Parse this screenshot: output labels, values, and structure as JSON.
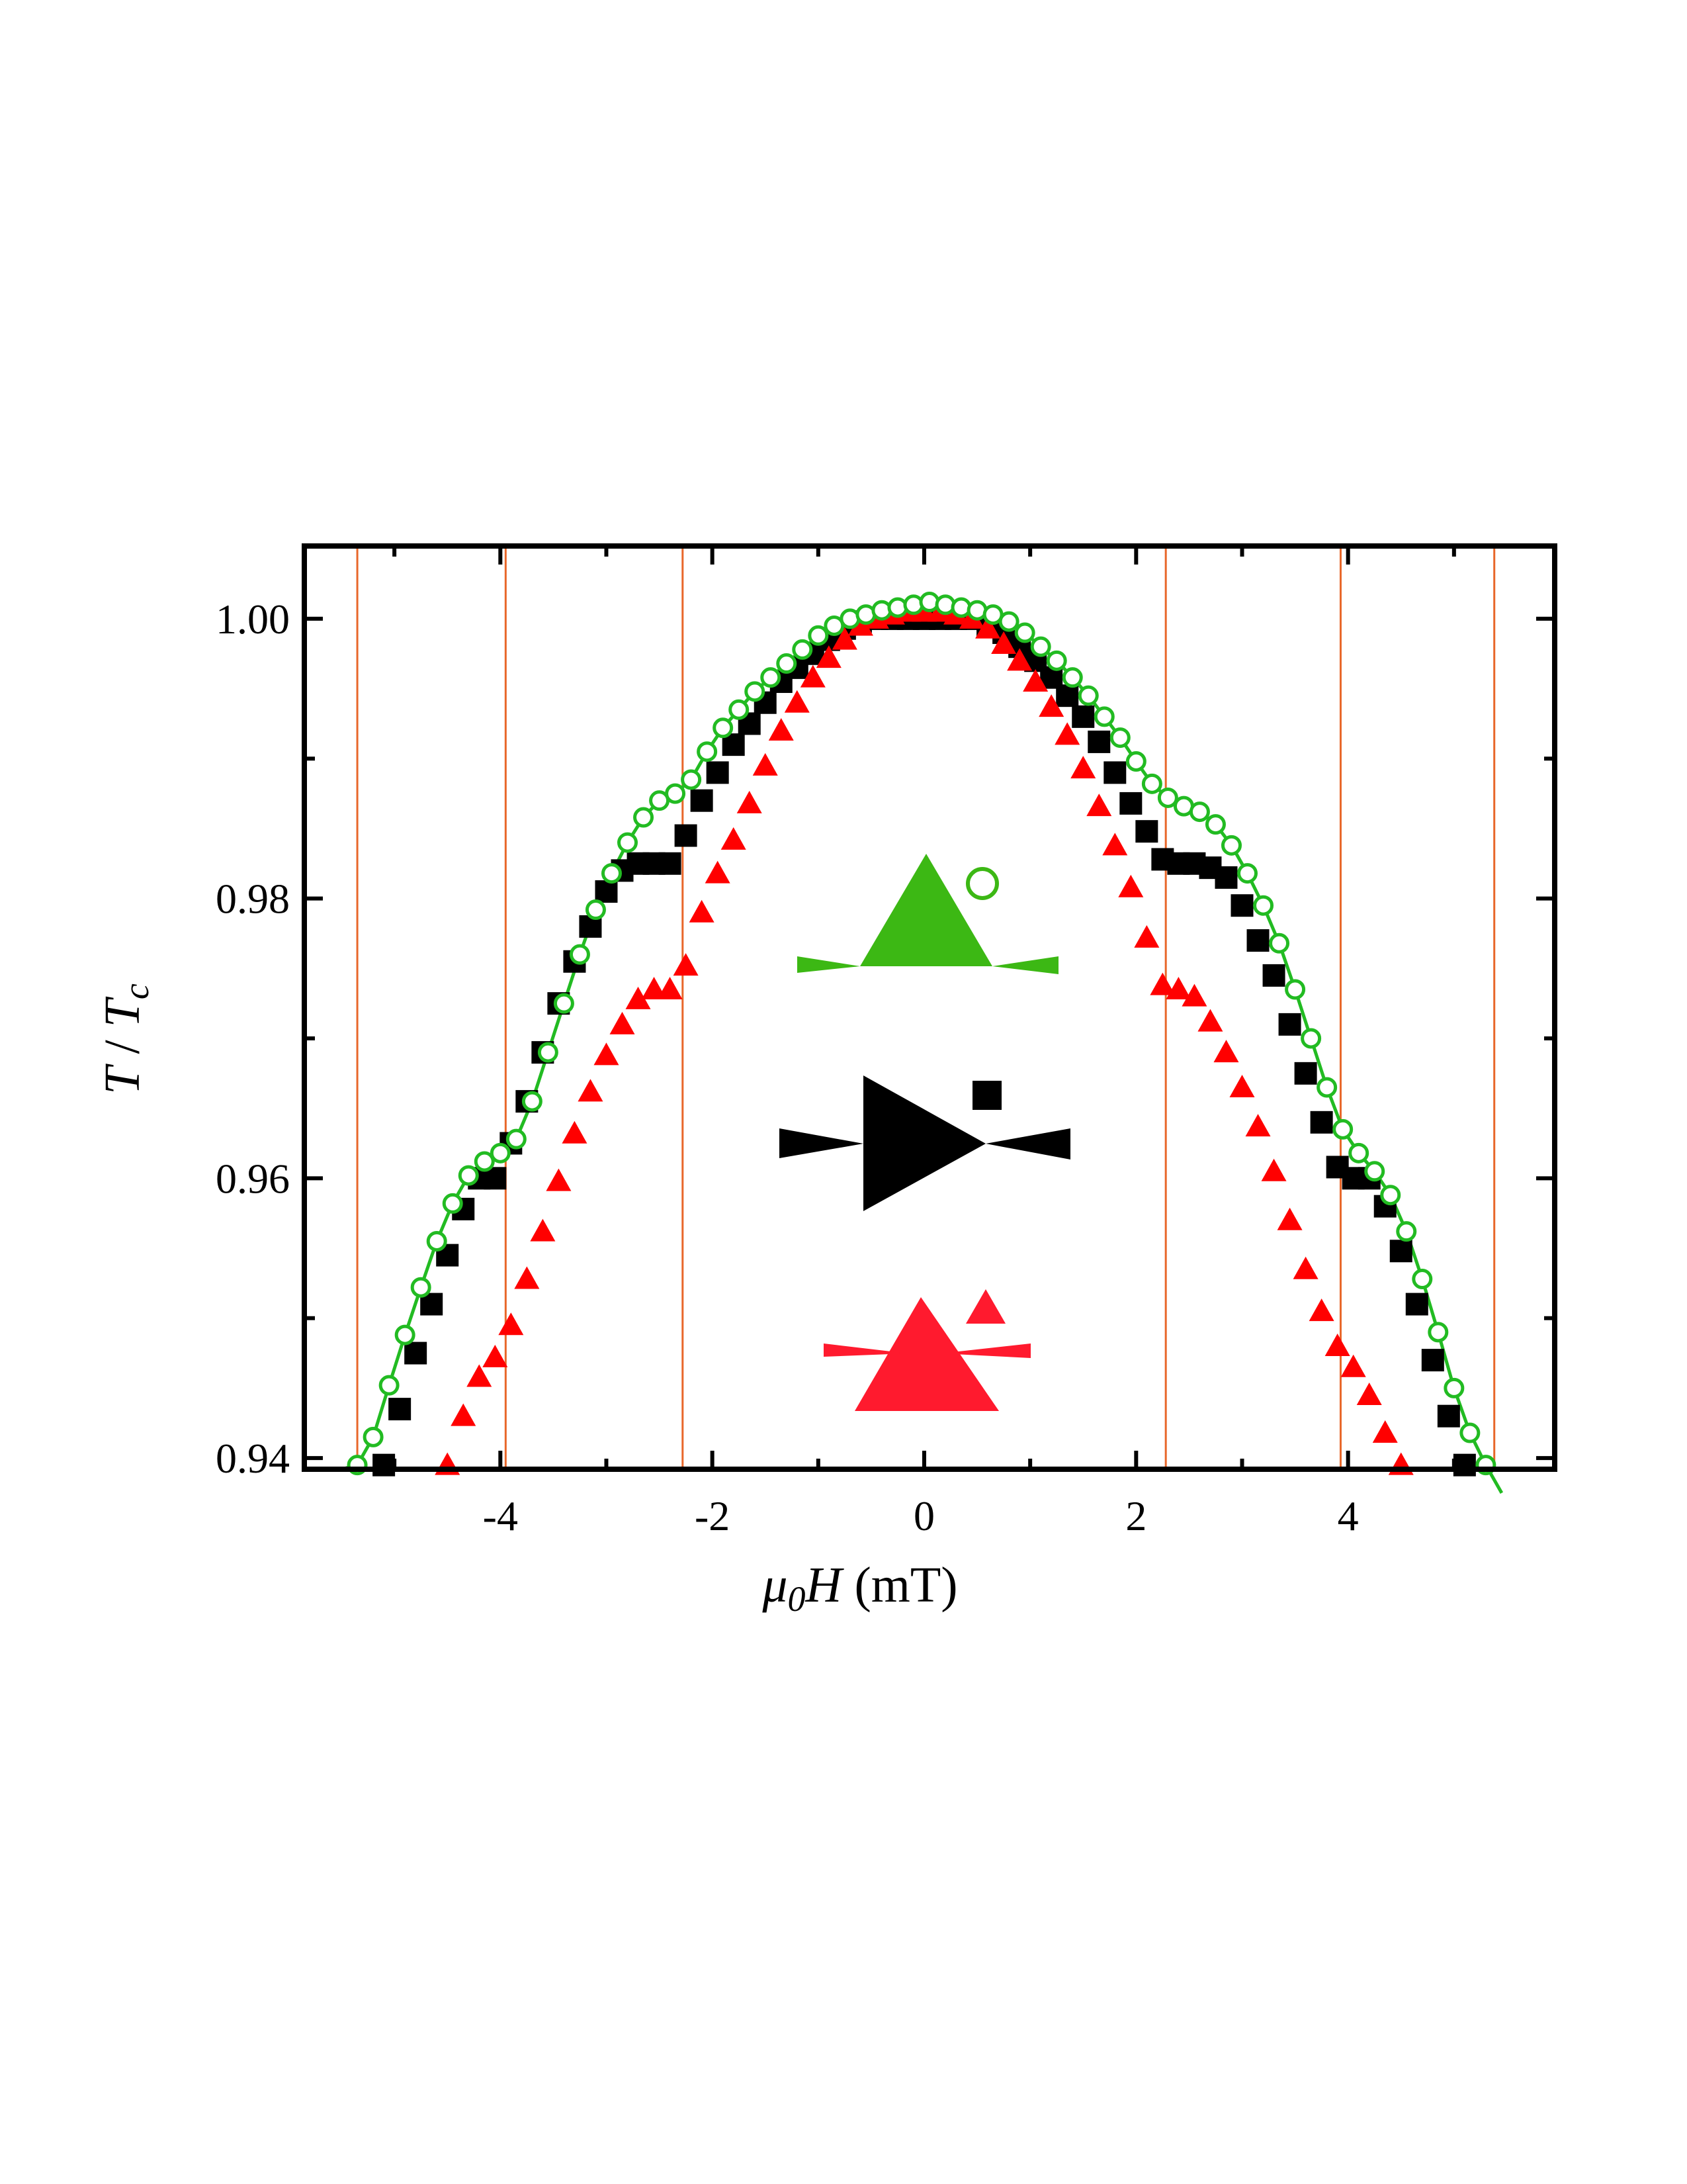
{
  "chart_data": {
    "type": "scatter",
    "title": "",
    "xlabel": {
      "symbol": "μ",
      "sub": "0",
      "var": "H",
      "unit": " (mT)"
    },
    "ylabel": {
      "var": "T",
      "sep": " / ",
      "var2": "T",
      "sub": "c"
    },
    "xlim": [
      -5.85,
      5.95
    ],
    "ylim": [
      0.9392,
      1.0052
    ],
    "xticks": [
      -4,
      -2,
      0,
      2,
      4
    ],
    "xtick_labels": [
      "-4",
      "-2",
      "0",
      "2",
      "4"
    ],
    "yticks": [
      0.94,
      0.96,
      0.98,
      1.0
    ],
    "ytick_labels": [
      "0.94",
      "0.96",
      "0.98",
      "1.00"
    ],
    "grid": false,
    "vlines": {
      "color": "#e8672a",
      "x": [
        -5.35,
        -3.95,
        -2.28,
        2.28,
        3.93,
        5.38
      ]
    },
    "series": [
      {
        "marker": "square",
        "color": "#000000",
        "points": [
          [
            -5.1,
            0.9395
          ],
          [
            -4.95,
            0.9435
          ],
          [
            -4.8,
            0.9475
          ],
          [
            -4.65,
            0.951
          ],
          [
            -4.5,
            0.9545
          ],
          [
            -4.35,
            0.9578
          ],
          [
            -4.2,
            0.96
          ],
          [
            -4.05,
            0.96
          ],
          [
            -3.9,
            0.9625
          ],
          [
            -3.75,
            0.9655
          ],
          [
            -3.6,
            0.969
          ],
          [
            -3.45,
            0.9725
          ],
          [
            -3.3,
            0.9755
          ],
          [
            -3.15,
            0.978
          ],
          [
            -3.0,
            0.9805
          ],
          [
            -2.85,
            0.982
          ],
          [
            -2.7,
            0.9825
          ],
          [
            -2.55,
            0.9825
          ],
          [
            -2.4,
            0.9825
          ],
          [
            -2.25,
            0.9845
          ],
          [
            -2.1,
            0.987
          ],
          [
            -1.95,
            0.989
          ],
          [
            -1.8,
            0.991
          ],
          [
            -1.65,
            0.9925
          ],
          [
            -1.5,
            0.994
          ],
          [
            -1.35,
            0.9955
          ],
          [
            -1.2,
            0.9965
          ],
          [
            -1.05,
            0.9975
          ],
          [
            -0.9,
            0.9985
          ],
          [
            -0.75,
            0.9993
          ],
          [
            -0.6,
            0.9998
          ],
          [
            -0.45,
            1.0
          ],
          [
            -0.3,
            1.0
          ],
          [
            -0.15,
            1.0
          ],
          [
            0.0,
            1.0
          ],
          [
            0.15,
            1.0
          ],
          [
            0.3,
            1.0
          ],
          [
            0.45,
            1.0
          ],
          [
            0.6,
            0.9995
          ],
          [
            0.75,
            0.999
          ],
          [
            0.9,
            0.998
          ],
          [
            1.05,
            0.997
          ],
          [
            1.2,
            0.9958
          ],
          [
            1.35,
            0.9945
          ],
          [
            1.5,
            0.993
          ],
          [
            1.65,
            0.9912
          ],
          [
            1.8,
            0.989
          ],
          [
            1.95,
            0.9868
          ],
          [
            2.1,
            0.9848
          ],
          [
            2.25,
            0.9828
          ],
          [
            2.4,
            0.9825
          ],
          [
            2.55,
            0.9825
          ],
          [
            2.7,
            0.9822
          ],
          [
            2.85,
            0.9815
          ],
          [
            3.0,
            0.9795
          ],
          [
            3.15,
            0.977
          ],
          [
            3.3,
            0.9745
          ],
          [
            3.45,
            0.971
          ],
          [
            3.6,
            0.9675
          ],
          [
            3.75,
            0.964
          ],
          [
            3.9,
            0.9608
          ],
          [
            4.05,
            0.96
          ],
          [
            4.2,
            0.96
          ],
          [
            4.35,
            0.958
          ],
          [
            4.5,
            0.9548
          ],
          [
            4.65,
            0.951
          ],
          [
            4.8,
            0.947
          ],
          [
            4.95,
            0.943
          ],
          [
            5.1,
            0.9395
          ]
        ]
      },
      {
        "marker": "triangle",
        "color": "#ff0000",
        "points": [
          [
            -4.5,
            0.9395
          ],
          [
            -4.35,
            0.943
          ],
          [
            -4.2,
            0.9458
          ],
          [
            -4.05,
            0.9472
          ],
          [
            -3.9,
            0.9495
          ],
          [
            -3.75,
            0.9528
          ],
          [
            -3.6,
            0.9562
          ],
          [
            -3.45,
            0.9598
          ],
          [
            -3.3,
            0.9632
          ],
          [
            -3.15,
            0.9662
          ],
          [
            -3.0,
            0.9688
          ],
          [
            -2.85,
            0.971
          ],
          [
            -2.7,
            0.9728
          ],
          [
            -2.55,
            0.9735
          ],
          [
            -2.4,
            0.9735
          ],
          [
            -2.25,
            0.9752
          ],
          [
            -2.1,
            0.979
          ],
          [
            -1.95,
            0.9818
          ],
          [
            -1.8,
            0.9842
          ],
          [
            -1.65,
            0.9868
          ],
          [
            -1.5,
            0.9895
          ],
          [
            -1.35,
            0.992
          ],
          [
            -1.2,
            0.994
          ],
          [
            -1.05,
            0.9958
          ],
          [
            -0.9,
            0.9972
          ],
          [
            -0.75,
            0.9985
          ],
          [
            -0.6,
            0.9995
          ],
          [
            -0.45,
            1.0
          ],
          [
            -0.3,
            1.0003
          ],
          [
            -0.15,
            1.0005
          ],
          [
            0.0,
            1.0005
          ],
          [
            0.15,
            1.0005
          ],
          [
            0.3,
            1.0003
          ],
          [
            0.45,
            1.0
          ],
          [
            0.6,
            0.9993
          ],
          [
            0.75,
            0.9982
          ],
          [
            0.9,
            0.997
          ],
          [
            1.05,
            0.9955
          ],
          [
            1.2,
            0.9937
          ],
          [
            1.35,
            0.9917
          ],
          [
            1.5,
            0.9893
          ],
          [
            1.65,
            0.9866
          ],
          [
            1.8,
            0.9838
          ],
          [
            1.95,
            0.9808
          ],
          [
            2.1,
            0.9772
          ],
          [
            2.25,
            0.9738
          ],
          [
            2.4,
            0.9735
          ],
          [
            2.55,
            0.973
          ],
          [
            2.7,
            0.9712
          ],
          [
            2.85,
            0.969
          ],
          [
            3.0,
            0.9665
          ],
          [
            3.15,
            0.9637
          ],
          [
            3.3,
            0.9605
          ],
          [
            3.45,
            0.957
          ],
          [
            3.6,
            0.9535
          ],
          [
            3.75,
            0.9505
          ],
          [
            3.9,
            0.948
          ],
          [
            4.05,
            0.9465
          ],
          [
            4.2,
            0.9445
          ],
          [
            4.35,
            0.9418
          ],
          [
            4.5,
            0.9395
          ]
        ]
      },
      {
        "marker": "circle",
        "color": "#22bb22",
        "points": [
          [
            -5.35,
            0.9395
          ],
          [
            -5.2,
            0.9415
          ],
          [
            -5.05,
            0.9452
          ],
          [
            -4.9,
            0.9488
          ],
          [
            -4.75,
            0.9522
          ],
          [
            -4.6,
            0.9555
          ],
          [
            -4.45,
            0.9582
          ],
          [
            -4.3,
            0.9602
          ],
          [
            -4.15,
            0.9612
          ],
          [
            -4.0,
            0.9618
          ],
          [
            -3.85,
            0.9628
          ],
          [
            -3.7,
            0.9655
          ],
          [
            -3.55,
            0.969
          ],
          [
            -3.4,
            0.9725
          ],
          [
            -3.25,
            0.976
          ],
          [
            -3.1,
            0.9792
          ],
          [
            -2.95,
            0.9818
          ],
          [
            -2.8,
            0.984
          ],
          [
            -2.65,
            0.9858
          ],
          [
            -2.5,
            0.987
          ],
          [
            -2.35,
            0.9875
          ],
          [
            -2.2,
            0.9885
          ],
          [
            -2.05,
            0.9905
          ],
          [
            -1.9,
            0.9922
          ],
          [
            -1.75,
            0.9935
          ],
          [
            -1.6,
            0.9948
          ],
          [
            -1.45,
            0.9958
          ],
          [
            -1.3,
            0.9968
          ],
          [
            -1.15,
            0.9978
          ],
          [
            -1.0,
            0.9988
          ],
          [
            -0.85,
            0.9995
          ],
          [
            -0.7,
            1.0
          ],
          [
            -0.55,
            1.0003
          ],
          [
            -0.4,
            1.0006
          ],
          [
            -0.25,
            1.0008
          ],
          [
            -0.1,
            1.001
          ],
          [
            0.05,
            1.0012
          ],
          [
            0.2,
            1.001
          ],
          [
            0.35,
            1.0008
          ],
          [
            0.5,
            1.0006
          ],
          [
            0.65,
            1.0003
          ],
          [
            0.8,
            0.9998
          ],
          [
            0.95,
            0.999
          ],
          [
            1.1,
            0.998
          ],
          [
            1.25,
            0.997
          ],
          [
            1.4,
            0.9958
          ],
          [
            1.55,
            0.9945
          ],
          [
            1.7,
            0.993
          ],
          [
            1.85,
            0.9915
          ],
          [
            2.0,
            0.9898
          ],
          [
            2.15,
            0.9882
          ],
          [
            2.3,
            0.9872
          ],
          [
            2.45,
            0.9866
          ],
          [
            2.6,
            0.9862
          ],
          [
            2.75,
            0.9853
          ],
          [
            2.9,
            0.9838
          ],
          [
            3.05,
            0.9818
          ],
          [
            3.2,
            0.9795
          ],
          [
            3.35,
            0.9768
          ],
          [
            3.5,
            0.9735
          ],
          [
            3.65,
            0.97
          ],
          [
            3.8,
            0.9665
          ],
          [
            3.95,
            0.9635
          ],
          [
            4.1,
            0.9618
          ],
          [
            4.25,
            0.9605
          ],
          [
            4.4,
            0.9588
          ],
          [
            4.55,
            0.9562
          ],
          [
            4.7,
            0.9528
          ],
          [
            4.85,
            0.949
          ],
          [
            5.0,
            0.945
          ],
          [
            5.15,
            0.9418
          ],
          [
            5.3,
            0.9395
          ]
        ]
      }
    ],
    "fit_line": {
      "color": "#22bb22",
      "x": [
        -5.5,
        -5.35,
        -5.2,
        -5.05,
        -4.9,
        -4.75,
        -4.6,
        -4.45,
        -4.3,
        -4.15,
        -4.0,
        -3.85,
        -3.7,
        -3.55,
        -3.4,
        -3.25,
        -3.1,
        -2.95,
        -2.8,
        -2.65,
        -2.5,
        -2.35,
        -2.2,
        -2.05,
        -1.9,
        -1.75,
        -1.6,
        -1.45,
        -1.3,
        -1.15,
        -1.0,
        -0.85,
        -0.7,
        -0.55,
        -0.4,
        -0.25,
        -0.1,
        0.05,
        0.2,
        0.35,
        0.5,
        0.65,
        0.8,
        0.95,
        1.1,
        1.25,
        1.4,
        1.55,
        1.7,
        1.85,
        2.0,
        2.15,
        2.3,
        2.45,
        2.6,
        2.75,
        2.9,
        3.05,
        3.2,
        3.35,
        3.5,
        3.65,
        3.8,
        3.95,
        4.1,
        4.25,
        4.4,
        4.55,
        4.7,
        4.85,
        5.0,
        5.15,
        5.3,
        5.45
      ],
      "y": [
        0.9392,
        0.9395,
        0.9415,
        0.9452,
        0.9488,
        0.9522,
        0.9555,
        0.9582,
        0.9602,
        0.9612,
        0.9618,
        0.9628,
        0.9655,
        0.969,
        0.9725,
        0.976,
        0.9792,
        0.9818,
        0.984,
        0.9858,
        0.987,
        0.9875,
        0.9885,
        0.9905,
        0.9922,
        0.9935,
        0.9948,
        0.9958,
        0.9968,
        0.9978,
        0.9988,
        0.9995,
        1.0,
        1.0003,
        1.0006,
        1.0008,
        1.001,
        1.0012,
        1.001,
        1.0008,
        1.0006,
        1.0003,
        0.9998,
        0.999,
        0.998,
        0.997,
        0.9958,
        0.9945,
        0.993,
        0.9915,
        0.9898,
        0.9882,
        0.9872,
        0.9866,
        0.9862,
        0.9853,
        0.9838,
        0.9818,
        0.9795,
        0.9768,
        0.9735,
        0.97,
        0.9665,
        0.9635,
        0.9618,
        0.9605,
        0.9588,
        0.9562,
        0.9528,
        0.949,
        0.945,
        0.9418,
        0.9395,
        0.9375
      ]
    },
    "insets": [
      {
        "name": "green-bowtie",
        "color": "#3cb814",
        "legend_marker": "circle"
      },
      {
        "name": "black-bowtie",
        "color": "#000000",
        "legend_marker": "square"
      },
      {
        "name": "red-bowtie",
        "color": "#ff1a2e",
        "legend_marker": "triangle"
      }
    ]
  }
}
